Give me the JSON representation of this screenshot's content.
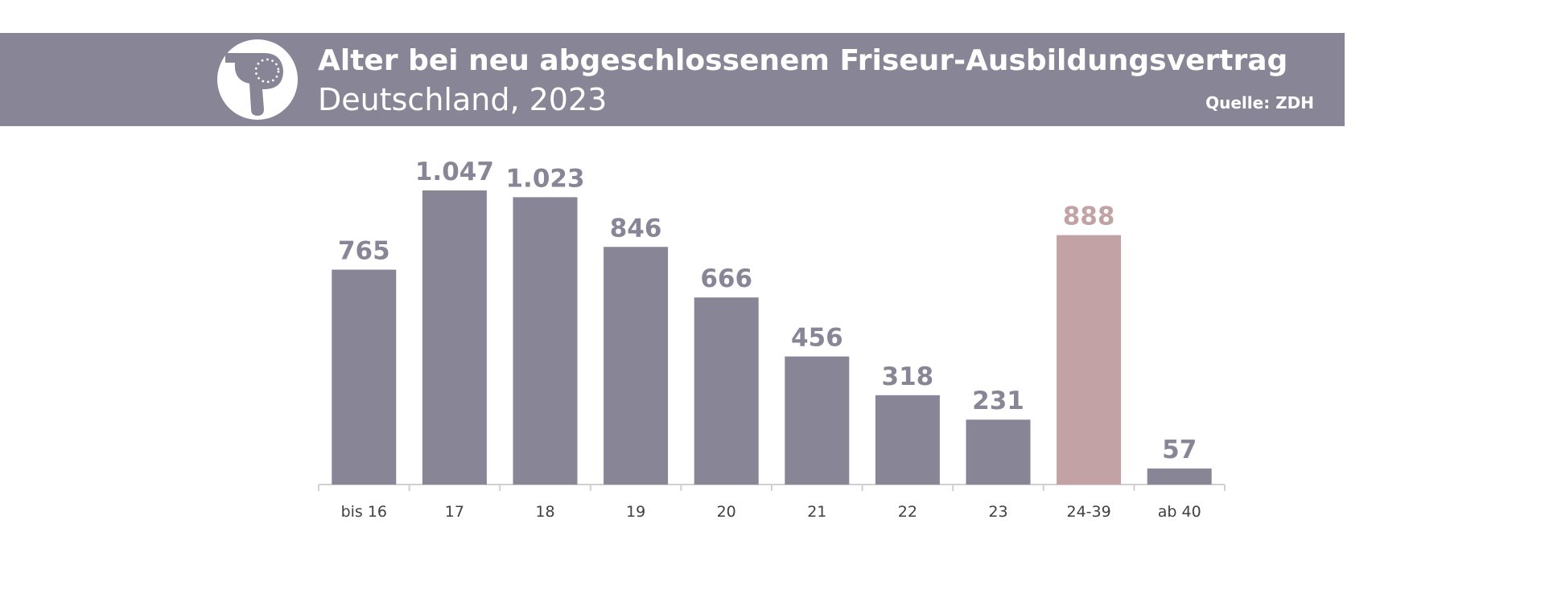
{
  "header": {
    "title": "Alter bei neu abgeschlossenem Friseur-Ausbildungsvertrag",
    "subtitle": "Deutschland, 2023",
    "source": "Quelle: ZDH",
    "icon": "hair-dryer-icon"
  },
  "colors": {
    "banner": "#878596",
    "bar": "#878596",
    "highlight_bar": "#C3A2A6",
    "axis": "#D0D0D0"
  },
  "chart_data": {
    "type": "bar",
    "title": "Alter bei neu abgeschlossenem Friseur-Ausbildungsvertrag",
    "subtitle": "Deutschland, 2023",
    "categories": [
      "bis 16",
      "17",
      "18",
      "19",
      "20",
      "21",
      "22",
      "23",
      "24-39",
      "ab 40"
    ],
    "values": [
      765,
      1047,
      1023,
      846,
      666,
      456,
      318,
      231,
      888,
      57
    ],
    "value_labels": [
      "765",
      "1.047",
      "1.023",
      "846",
      "666",
      "456",
      "318",
      "231",
      "888",
      "57"
    ],
    "highlight_category": "24-39",
    "xlabel": "",
    "ylabel": "",
    "grid": false,
    "legend": "none"
  }
}
